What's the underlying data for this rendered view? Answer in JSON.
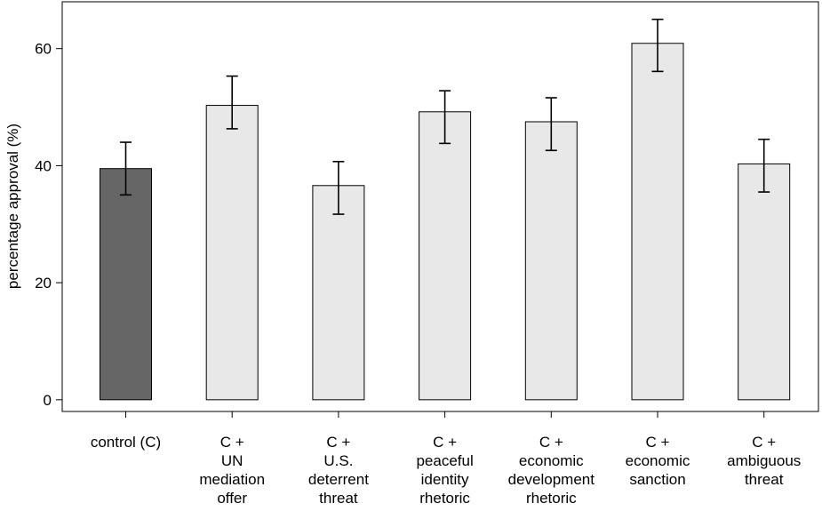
{
  "chart_data": {
    "type": "bar",
    "ylabel": "percentage approval (%)",
    "xlabel": "",
    "ylim": [
      -2,
      68
    ],
    "yticks": [
      0,
      20,
      40,
      60
    ],
    "grid": false,
    "categories": [
      [
        "control (C)"
      ],
      [
        "C +",
        "UN",
        "mediation",
        "offer"
      ],
      [
        "C +",
        "U.S.",
        "deterrent",
        "threat"
      ],
      [
        "C +",
        "peaceful",
        "identity",
        "rhetoric"
      ],
      [
        "C +",
        "economic",
        "development",
        "rhetoric"
      ],
      [
        "C +",
        "economic",
        "sanction"
      ],
      [
        "C +",
        "ambiguous",
        "threat"
      ]
    ],
    "values": [
      39.5,
      50.3,
      36.6,
      49.2,
      47.5,
      60.9,
      40.3
    ],
    "error_low": [
      35.0,
      46.3,
      31.7,
      43.8,
      42.6,
      56.1,
      35.5
    ],
    "error_high": [
      44.0,
      55.3,
      40.7,
      52.8,
      51.6,
      65.0,
      44.5
    ],
    "colors": [
      "#666666",
      "#e8e8e8",
      "#e8e8e8",
      "#e8e8e8",
      "#e8e8e8",
      "#e8e8e8",
      "#e8e8e8"
    ]
  }
}
